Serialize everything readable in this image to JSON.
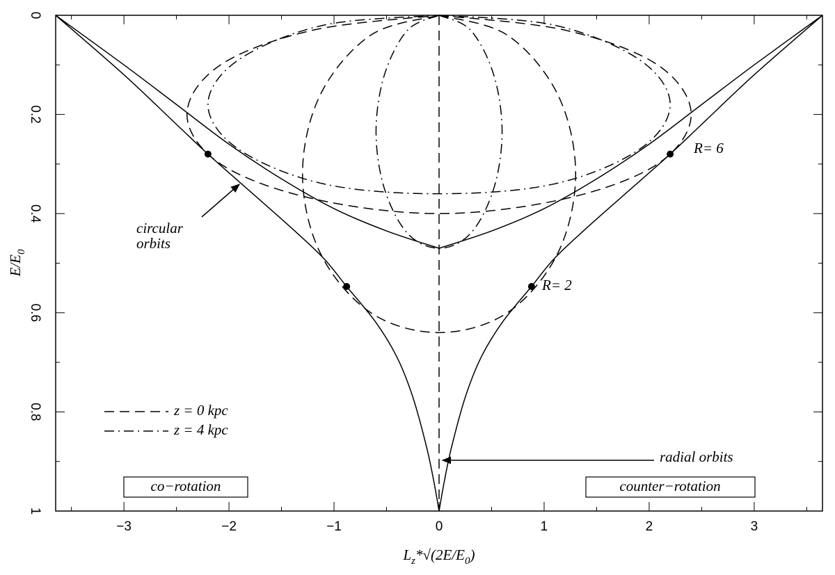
{
  "chart_data": {
    "type": "line",
    "color": "#000000",
    "xlabel": [
      "L",
      "z",
      "*√(2E/E",
      "0",
      ")"
    ],
    "ylabel": [
      "E/E",
      "0"
    ],
    "xlim": [
      -3.65,
      3.65
    ],
    "ylim": [
      0,
      1
    ],
    "y_inverted": true,
    "xticks": [
      -3,
      -2,
      -1,
      0,
      1,
      2,
      3
    ],
    "yticks": [
      0,
      0.2,
      0.4,
      0.6,
      0.8,
      1
    ],
    "xminorticks": [
      -3.5,
      -2.5,
      -1.5,
      -0.5,
      0.5,
      1.5,
      2.5,
      3.5
    ],
    "yminorticks": [
      0.1,
      0.3,
      0.5,
      0.7,
      0.9
    ],
    "legend_position": "lower left",
    "series": [
      {
        "style": "solid",
        "x": [
          -3.65,
          -3,
          -2.5,
          -2.2,
          -1.8,
          -1.4,
          -1.1,
          -0.88,
          -0.6,
          -0.4,
          -0.25,
          -0.12,
          -0.05,
          0
        ],
        "y": [
          0,
          0.12,
          0.22,
          0.28,
          0.355,
          0.43,
          0.49,
          0.547,
          0.62,
          0.69,
          0.77,
          0.87,
          0.94,
          1
        ]
      },
      {
        "style": "solid",
        "x": [
          3.65,
          3,
          2.5,
          2.2,
          1.8,
          1.4,
          1.1,
          0.88,
          0.6,
          0.4,
          0.25,
          0.12,
          0.05,
          0
        ],
        "y": [
          0,
          0.12,
          0.22,
          0.28,
          0.355,
          0.43,
          0.49,
          0.547,
          0.62,
          0.69,
          0.77,
          0.87,
          0.94,
          1
        ]
      },
      {
        "style": "solid",
        "x": [
          -3.65,
          -3,
          -2.5,
          -2,
          -1.5,
          -1,
          -0.5,
          0
        ],
        "y": [
          0,
          0.1,
          0.18,
          0.26,
          0.33,
          0.39,
          0.435,
          0.47
        ]
      },
      {
        "style": "solid",
        "x": [
          3.65,
          3,
          2.5,
          2,
          1.5,
          1,
          0.5,
          0
        ],
        "y": [
          0,
          0.1,
          0.18,
          0.26,
          0.33,
          0.39,
          0.435,
          0.47
        ]
      },
      {
        "name": "z = 0 kpc",
        "style": "dashed",
        "x": [
          0,
          1.2,
          2.08,
          2.4,
          2.08,
          1.2,
          0,
          -1.2,
          -2.08,
          -2.4,
          -2.08,
          -1.2,
          0
        ],
        "y": [
          0,
          0.03,
          0.1,
          0.2,
          0.3,
          0.37,
          0.4,
          0.37,
          0.3,
          0.2,
          0.1,
          0.03,
          0
        ]
      },
      {
        "style": "dashed",
        "x": [
          0,
          0.65,
          1.13,
          1.3,
          1.13,
          0.65,
          0,
          -0.65,
          -1.13,
          -1.3,
          -1.13,
          -0.65,
          0
        ],
        "y": [
          0,
          0.04,
          0.16,
          0.32,
          0.48,
          0.6,
          0.64,
          0.6,
          0.48,
          0.32,
          0.16,
          0.04,
          0
        ]
      },
      {
        "style": "dashed",
        "x": [
          0,
          0
        ],
        "y": [
          0,
          1
        ]
      },
      {
        "name": "z = 4 kpc",
        "style": "dashdot",
        "x": [
          0,
          1.1,
          1.91,
          2.2,
          1.91,
          1.1,
          0,
          -1.1,
          -1.91,
          -2.2,
          -1.91,
          -1.1,
          0
        ],
        "y": [
          0,
          0.02,
          0.09,
          0.18,
          0.27,
          0.34,
          0.36,
          0.34,
          0.27,
          0.18,
          0.09,
          0.02,
          0
        ]
      },
      {
        "style": "dashdot",
        "x": [
          0,
          0.3,
          0.52,
          0.6,
          0.52,
          0.3,
          0,
          -0.3,
          -0.52,
          -0.6,
          -0.52,
          -0.3,
          0
        ],
        "y": [
          0,
          0.03,
          0.12,
          0.235,
          0.35,
          0.44,
          0.47,
          0.44,
          0.35,
          0.235,
          0.12,
          0.03,
          0
        ]
      }
    ],
    "points": {
      "x": [
        -2.2,
        2.2,
        -0.88,
        0.88
      ],
      "y": [
        0.28,
        0.28,
        0.547,
        0.547
      ]
    },
    "annotations": [
      "circular",
      "orbits",
      "radial orbits",
      "R= 6",
      "R= 2",
      "co−rotation",
      "counter−rotation"
    ]
  }
}
